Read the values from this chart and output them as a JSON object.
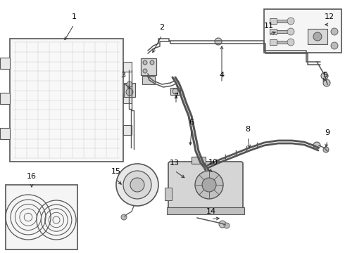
{
  "bg_color": "#ffffff",
  "lc": "#555555",
  "figsize": [
    4.9,
    3.6
  ],
  "dpi": 100,
  "xlim": [
    0,
    490
  ],
  "ylim": [
    0,
    360
  ]
}
